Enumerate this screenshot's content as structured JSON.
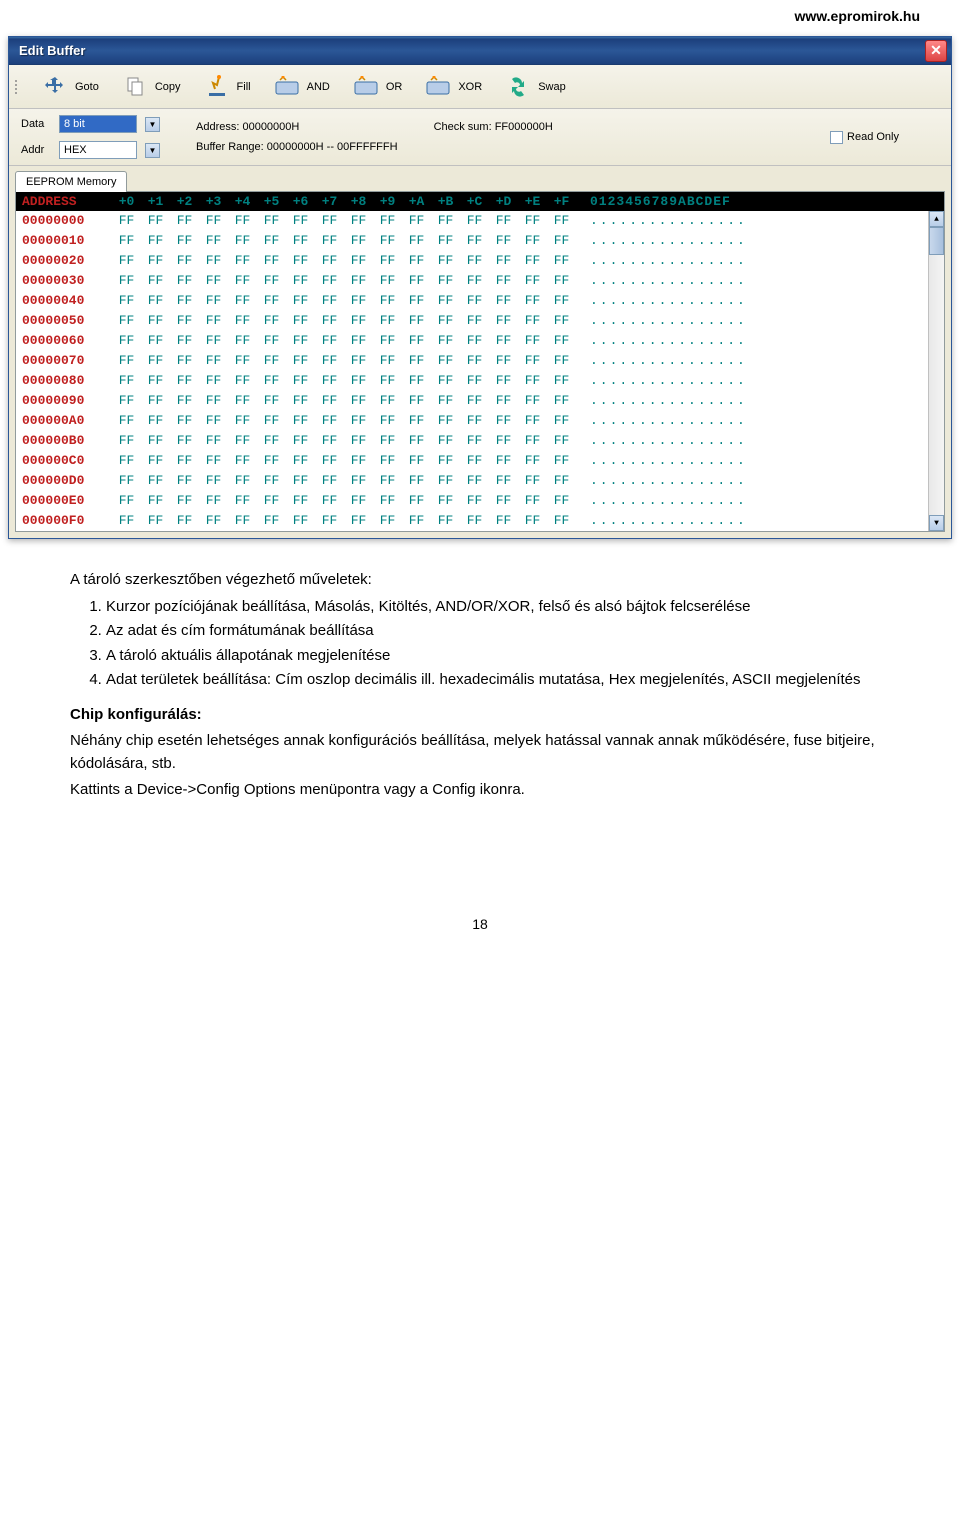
{
  "page_url": "www.epromirok.hu",
  "window": {
    "title": "Edit Buffer",
    "toolbar": [
      {
        "name": "goto",
        "label": "Goto",
        "icon": "move"
      },
      {
        "name": "copy",
        "label": "Copy",
        "icon": "copy"
      },
      {
        "name": "fill",
        "label": "Fill",
        "icon": "fill"
      },
      {
        "name": "and",
        "label": "AND",
        "icon": "chip"
      },
      {
        "name": "or",
        "label": "OR",
        "icon": "chip"
      },
      {
        "name": "xor",
        "label": "XOR",
        "icon": "chip"
      },
      {
        "name": "swap",
        "label": "Swap",
        "icon": "swap"
      }
    ],
    "controls": {
      "data_label": "Data",
      "data_value": "8 bit",
      "addr_label": "Addr",
      "addr_value": "HEX",
      "address_label": "Address: 00000000H",
      "checksum_label": "Check sum: FF000000H",
      "buffer_range_label": "Buffer Range: 00000000H -- 00FFFFFFH",
      "readonly_label": "Read Only"
    },
    "tab_label": "EEPROM Memory",
    "hex": {
      "header_address": "ADDRESS",
      "header_offsets": [
        "+0",
        "+1",
        "+2",
        "+3",
        "+4",
        "+5",
        "+6",
        "+7",
        "+8",
        "+9",
        "+A",
        "+B",
        "+C",
        "+D",
        "+E",
        "+F"
      ],
      "header_ascii": "0123456789ABCDEF",
      "addresses": [
        "00000000",
        "00000010",
        "00000020",
        "00000030",
        "00000040",
        "00000050",
        "00000060",
        "00000070",
        "00000080",
        "00000090",
        "000000A0",
        "000000B0",
        "000000C0",
        "000000D0",
        "000000E0",
        "000000F0"
      ],
      "byte_value": "FF",
      "ascii_value": "................"
    }
  },
  "doc": {
    "intro": "A tároló szerkesztőben végezhető műveletek:",
    "items": [
      "Kurzor pozíciójának beállítása, Másolás, Kitöltés, AND/OR/XOR, felső és alsó bájtok felcserélése",
      "Az adat és cím formátumának beállítása",
      "A tároló aktuális állapotának megjelenítése",
      "Adat területek beállítása: Cím oszlop decimális ill. hexadecimális mutatása, Hex megjelenítés, ASCII megjelenítés"
    ],
    "chip_title": "Chip konfigurálás:",
    "chip_body1": "Néhány chip esetén lehetséges annak konfigurációs beállítása, melyek hatással vannak annak működésére, fuse bitjeire, kódolására, stb.",
    "chip_body2": "Kattints a Device->Config Options menüpontra vagy a Config ikonra.",
    "page_number": "18"
  }
}
